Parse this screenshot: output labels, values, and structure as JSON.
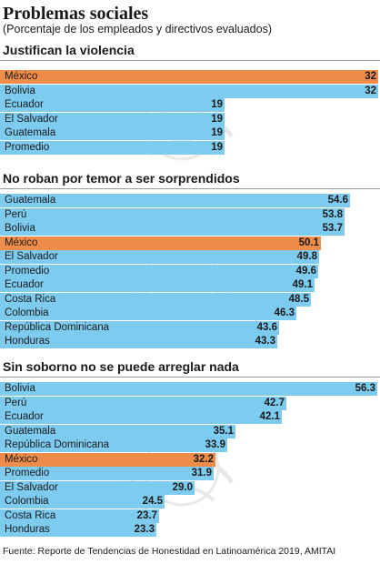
{
  "title": "Problemas sociales",
  "subtitle": "(Porcentaje de los empleados y directivos evaluados)",
  "source": "Fuente: Reporte de Tendencias de Honestidad en Latinoamérica 2019, AMITAI",
  "colors": {
    "default_bar": "#7ecbf0",
    "highlight_bar": "#f08c4a",
    "separator": "#9a9a9a"
  },
  "chart_data": [
    {
      "type": "bar",
      "orientation": "horizontal",
      "title": "Justifican la violencia",
      "xlim": [
        0,
        32
      ],
      "highlight": "México",
      "categories": [
        "México",
        "Bolivia",
        "Ecuador",
        "El Salvador",
        "Guatemala",
        "Promedio"
      ],
      "values": [
        32,
        32,
        19,
        19,
        19,
        19
      ],
      "value_labels": [
        "32",
        "32",
        "19",
        "19",
        "19",
        "19"
      ]
    },
    {
      "type": "bar",
      "orientation": "horizontal",
      "title": "No roban por temor a ser sorprendidos",
      "xlim": [
        0,
        54.6
      ],
      "highlight": "México",
      "categories": [
        "Guatemala",
        "Perú",
        "Bolivia",
        "México",
        "El Salvador",
        "Promedio",
        "Ecuador",
        "Costa Rica",
        "Colombia",
        "República Dominicana",
        "Honduras"
      ],
      "values": [
        54.6,
        53.8,
        53.7,
        50.1,
        49.8,
        49.6,
        49.1,
        48.5,
        46.3,
        43.6,
        43.3
      ],
      "value_labels": [
        "54.6",
        "53.8",
        "53.7",
        "50.1",
        "49.8",
        "49.6",
        "49.1",
        "48.5",
        "46.3",
        "43.6",
        "43.3"
      ]
    },
    {
      "type": "bar",
      "orientation": "horizontal",
      "title": "Sin soborno no se puede arreglar nada",
      "xlim": [
        0,
        56.3
      ],
      "highlight": "México",
      "categories": [
        "Bolivia",
        "Perú",
        "Ecuador",
        "Guatemala",
        "República Dominicana",
        "México",
        "Promedio",
        "El Salvador",
        "Colombia",
        "Costa Rica",
        "Honduras"
      ],
      "values": [
        56.3,
        42.7,
        42.1,
        35.1,
        33.9,
        32.2,
        31.9,
        29.0,
        24.5,
        23.7,
        23.3
      ],
      "value_labels": [
        "56.3",
        "42.7",
        "42.1",
        "35.1",
        "33.9",
        "32.2",
        "31.9",
        "29.0",
        "24.5",
        "23.7",
        "23.3"
      ]
    }
  ]
}
